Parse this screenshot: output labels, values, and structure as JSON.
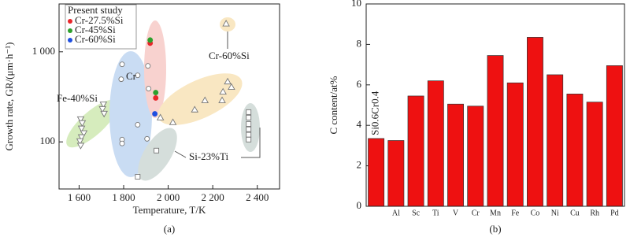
{
  "chart_data": [
    {
      "type": "scatter",
      "sublabel": "(a)",
      "xlabel": "Temperature, T/K",
      "ylabel": "Growth rate, GR/(μm·h⁻¹)",
      "xlim": [
        1510,
        2500
      ],
      "ylim": [
        30,
        3400
      ],
      "ylog": true,
      "xticks": [
        {
          "value": 1600,
          "label": "1 600"
        },
        {
          "value": 1800,
          "label": "1 800"
        },
        {
          "value": 2000,
          "label": "2 000"
        },
        {
          "value": 2200,
          "label": "2 200"
        },
        {
          "value": 2400,
          "label": "2 400"
        }
      ],
      "yticks": [
        100,
        {
          "value": 1000,
          "label": "1 000"
        }
      ],
      "legend_title": "Present study",
      "series": [
        {
          "name": "Fe-40%Si",
          "color": "#777777",
          "marker": "triangle-down",
          "open": true,
          "x": [
            1607,
            1614,
            1611,
            1621,
            1611,
            1604,
            1607,
            1709,
            1705,
            1712
          ],
          "values": [
            179,
            162,
            141,
            125,
            113,
            102,
            91,
            261,
            232,
            206
          ]
        },
        {
          "name": "Cr",
          "color": "#777777",
          "marker": "circle",
          "open": true,
          "x": [
            1793,
            1789,
            1863,
            1909,
            1912,
            1793,
            1793,
            1863,
            1905
          ],
          "values": [
            726,
            496,
            548,
            697,
            390,
            106,
            96,
            155,
            108
          ]
        },
        {
          "name": "Cr-60%Si",
          "color": "#777777",
          "marker": "triangle",
          "open": true,
          "x": [
            2260,
            2267,
            2284,
            2246,
            2242,
            2165,
            2119,
            2021,
            1965
          ],
          "values": [
            2055,
            467,
            406,
            360,
            289,
            289,
            228,
            165,
            186
          ]
        },
        {
          "name": "Si-23%Ti",
          "color": "#777777",
          "marker": "square",
          "open": true,
          "x": [
            2361,
            2361,
            2361,
            2361,
            2361,
            2361,
            1947,
            1863
          ],
          "values": [
            214,
            186,
            158,
            138,
            120,
            106,
            80,
            41
          ]
        },
        {
          "name": "Cr-27.5%Si",
          "color": "#e8262a",
          "marker": "circle",
          "legend": true,
          "x": [
            1919,
            1944
          ],
          "values": [
            1246,
            307
          ]
        },
        {
          "name": "Cr-45%Si",
          "color": "#2ca02c",
          "marker": "circle",
          "legend": true,
          "x": [
            1919,
            1944
          ],
          "values": [
            1350,
            353
          ]
        },
        {
          "name": "Cr-60%Si",
          "color": "#1f4fe0",
          "marker": "circle",
          "legend": true,
          "x": [
            1940
          ],
          "values": [
            205
          ]
        }
      ]
    },
    {
      "type": "bar",
      "sublabel": "(b)",
      "ylabel": "C content/at%",
      "ylim": [
        0,
        10
      ],
      "yticks": [
        0,
        2,
        4,
        6,
        8,
        10
      ],
      "color": "#ee1111",
      "categories": [
        "Si0.6Cr0.4",
        "Al",
        "Sc",
        "Ti",
        "V",
        "Cr",
        "Mn",
        "Fe",
        "Co",
        "Ni",
        "Cu",
        "Rh",
        "Pd"
      ],
      "values": [
        3.35,
        3.25,
        5.45,
        6.2,
        5.05,
        4.95,
        7.45,
        6.1,
        8.35,
        6.5,
        5.55,
        5.15,
        6.95
      ]
    }
  ]
}
